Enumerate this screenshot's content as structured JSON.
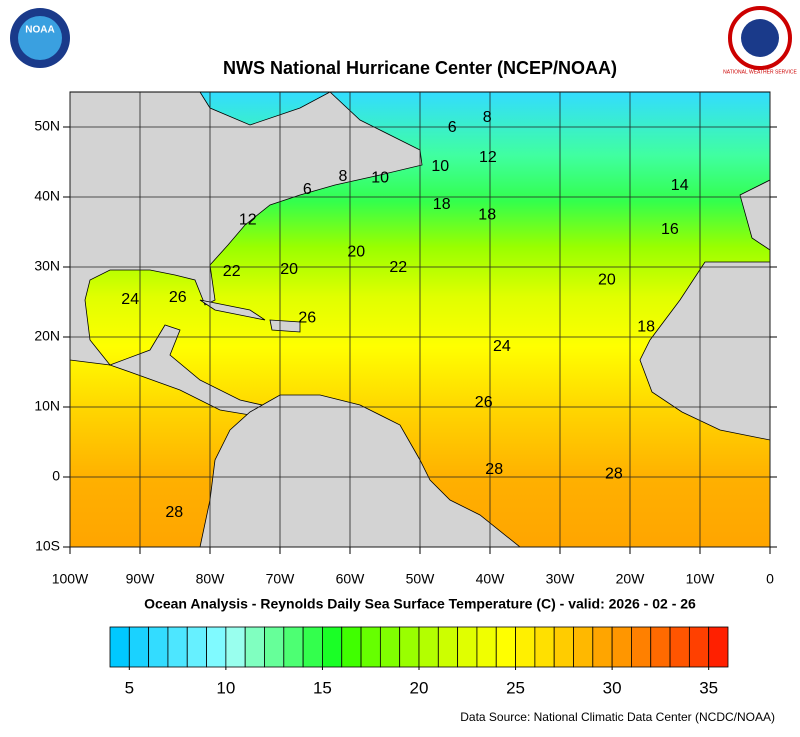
{
  "chart_data": {
    "type": "map",
    "title": "NWS National Hurricane Center (NCEP/NOAA)",
    "subtitle": "Ocean Analysis - Reynolds Daily Sea Surface Temperature (C) - valid: 2026 - 02 - 26",
    "source": "Data Source: National Climatic Data Center (NCDC/NOAA)",
    "logos": {
      "left": "NOAA",
      "right": "NATIONAL WEATHER SERVICE"
    },
    "xlim": [
      -100,
      0
    ],
    "ylim": [
      -10,
      55
    ],
    "xticks": [
      {
        "value": -100,
        "label": "100W"
      },
      {
        "value": -90,
        "label": "90W"
      },
      {
        "value": -80,
        "label": "80W"
      },
      {
        "value": -70,
        "label": "70W"
      },
      {
        "value": -60,
        "label": "60W"
      },
      {
        "value": -50,
        "label": "50W"
      },
      {
        "value": -40,
        "label": "40W"
      },
      {
        "value": -30,
        "label": "30W"
      },
      {
        "value": -20,
        "label": "20W"
      },
      {
        "value": -10,
        "label": "10W"
      },
      0
    ],
    "yticks": [
      {
        "value": -10,
        "label": "10S"
      },
      0,
      {
        "value": 10,
        "label": "10N"
      },
      {
        "value": 20,
        "label": "20N"
      },
      {
        "value": 30,
        "label": "30N"
      },
      {
        "value": 40,
        "label": "40N"
      },
      {
        "value": 50,
        "label": "50N"
      }
    ],
    "grid": true,
    "contour_labels": [
      {
        "value": 8,
        "lon": -40.4,
        "lat": 51.3
      },
      {
        "value": 6,
        "lon": -45.4,
        "lat": 49.9
      },
      {
        "value": 12,
        "lon": -40.3,
        "lat": 45.6
      },
      {
        "value": 10,
        "lon": -47.1,
        "lat": 44.3
      },
      {
        "value": 8,
        "lon": -61,
        "lat": 42.9
      },
      {
        "value": 10,
        "lon": -55.7,
        "lat": 42.7
      },
      {
        "value": 6,
        "lon": -66.1,
        "lat": 41
      },
      {
        "value": 14,
        "lon": -12.9,
        "lat": 41.6
      },
      {
        "value": 18,
        "lon": -46.9,
        "lat": 38.9
      },
      {
        "value": 18,
        "lon": -40.4,
        "lat": 37.4
      },
      {
        "value": 16,
        "lon": -14.3,
        "lat": 35.3
      },
      {
        "value": 12,
        "lon": -74.6,
        "lat": 36.7
      },
      {
        "value": 20,
        "lon": -59.1,
        "lat": 32.1
      },
      {
        "value": 22,
        "lon": -76.9,
        "lat": 29.3
      },
      {
        "value": 20,
        "lon": -68.7,
        "lat": 29.6
      },
      {
        "value": 22,
        "lon": -53.1,
        "lat": 29.9
      },
      {
        "value": 20,
        "lon": -23.3,
        "lat": 28.1
      },
      {
        "value": 24,
        "lon": -91.4,
        "lat": 25.3
      },
      {
        "value": 26,
        "lon": -84.6,
        "lat": 25.6
      },
      {
        "value": 26,
        "lon": -66.1,
        "lat": 22.7
      },
      {
        "value": 18,
        "lon": -17.7,
        "lat": 21.4
      },
      {
        "value": 24,
        "lon": -38.3,
        "lat": 18.6
      },
      {
        "value": 26,
        "lon": -40.9,
        "lat": 10.6
      },
      {
        "value": 28,
        "lon": -39.4,
        "lat": 1
      },
      {
        "value": 28,
        "lon": -22.3,
        "lat": 0.4
      },
      {
        "value": 28,
        "lon": -85.1,
        "lat": -5.1
      }
    ],
    "colorbar": {
      "range": [
        4,
        36
      ],
      "ticks": [
        5,
        10,
        15,
        20,
        25,
        30,
        35
      ],
      "colors": [
        "#00c8ff",
        "#1ad2ff",
        "#33dcff",
        "#4de6ff",
        "#66f0ff",
        "#80faff",
        "#99ffee",
        "#80ffc0",
        "#66ff99",
        "#4dff73",
        "#33ff4d",
        "#1aff26",
        "#40ff00",
        "#66ff00",
        "#80ff00",
        "#99ff00",
        "#b3ff00",
        "#ccff00",
        "#e0ff00",
        "#f0ff00",
        "#ffff00",
        "#fff000",
        "#ffe000",
        "#ffcc00",
        "#ffb800",
        "#ffa500",
        "#ff9600",
        "#ff8000",
        "#ff6a00",
        "#ff5500",
        "#ff4000",
        "#ff2000"
      ]
    }
  }
}
